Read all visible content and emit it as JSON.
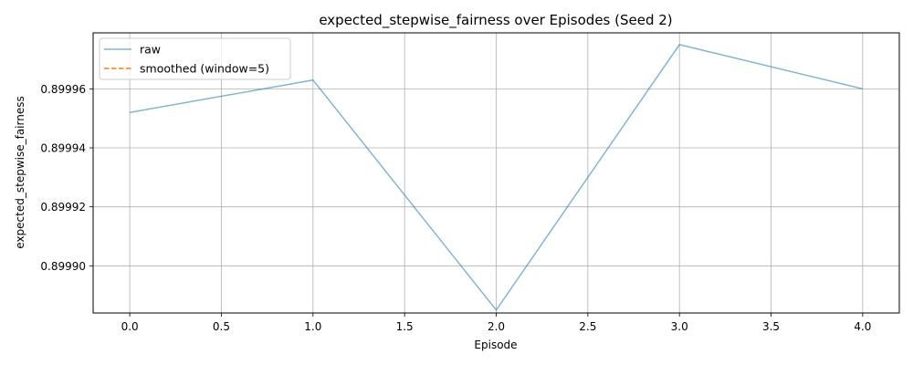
{
  "chart_data": {
    "type": "line",
    "title": "expected_stepwise_fairness over Episodes (Seed 2)",
    "xlabel": "Episode",
    "ylabel": "expected_stepwise_fairness",
    "xlim": [
      -0.2,
      4.2
    ],
    "ylim": [
      0.899884,
      0.899979
    ],
    "x_ticks": [
      0.0,
      0.5,
      1.0,
      1.5,
      2.0,
      2.5,
      3.0,
      3.5,
      4.0
    ],
    "x_tick_labels": [
      "0.0",
      "0.5",
      "1.0",
      "1.5",
      "2.0",
      "2.5",
      "3.0",
      "3.5",
      "4.0"
    ],
    "y_ticks": [
      0.8999,
      0.89992,
      0.89994,
      0.89996
    ],
    "y_tick_labels": [
      "0.89990",
      "0.89992",
      "0.89994",
      "0.89996"
    ],
    "grid": true,
    "legend_position": "top-left",
    "series": [
      {
        "name": "raw",
        "color": "#1f77b4",
        "style": "solid",
        "x": [
          0,
          1,
          2,
          3,
          4
        ],
        "values": [
          0.899952,
          0.899963,
          0.899885,
          0.899975,
          0.89996
        ]
      },
      {
        "name": "smoothed (window=5)",
        "color": "#ff7f0e",
        "style": "dashed",
        "x": [],
        "values": []
      }
    ]
  }
}
